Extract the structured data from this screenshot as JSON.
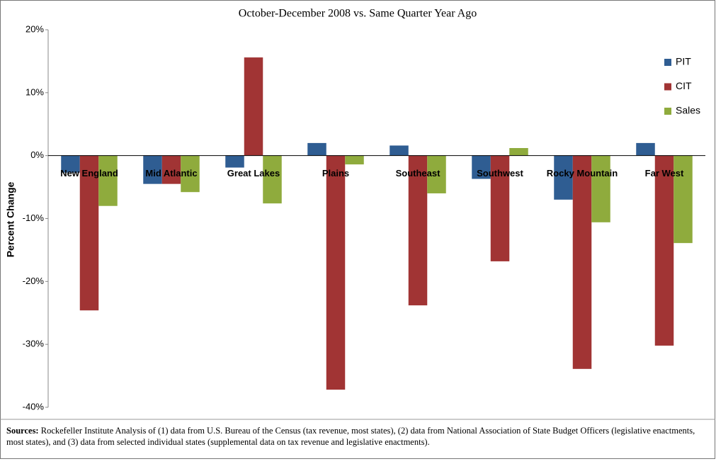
{
  "chart_data": {
    "type": "bar",
    "title": "October-December 2008 vs. Same Quarter Year Ago",
    "y_label": "Percent Change",
    "categories": [
      "New England",
      "Mid Atlantic",
      "Great Lakes",
      "Plains",
      "Southeast",
      "Southwest",
      "Rocky Mountain",
      "Far West"
    ],
    "series": [
      {
        "name": "PIT",
        "color": "#2f5d92",
        "values": [
          -2.7,
          -4.5,
          -1.9,
          2.0,
          1.6,
          -3.7,
          -7.0,
          2.0
        ]
      },
      {
        "name": "CIT",
        "color": "#a13434",
        "values": [
          -24.6,
          -4.5,
          15.6,
          -37.2,
          -23.8,
          -16.8,
          -33.9,
          -30.2
        ]
      },
      {
        "name": "Sales",
        "color": "#8fab3d",
        "values": [
          -8.0,
          -5.8,
          -7.6,
          -1.4,
          -6.0,
          1.2,
          -10.6,
          -13.9
        ]
      }
    ],
    "ylim": [
      -40,
      20
    ],
    "yticks": [
      {
        "value": -40,
        "label": "-40%"
      },
      {
        "value": -30,
        "label": "-30%"
      },
      {
        "value": -20,
        "label": "-20%"
      },
      {
        "value": -10,
        "label": "-10%"
      },
      {
        "value": 0,
        "label": "0%"
      },
      {
        "value": 10,
        "label": "10%"
      },
      {
        "value": 20,
        "label": "20%"
      }
    ],
    "grid": false,
    "legend": "upper right",
    "source_label": "Sources:",
    "source_text": "Rockefeller Institute Analysis of (1) data from U.S. Bureau of the Census (tax revenue, most states), (2) data from National Association of State Budget Officers (legislative enactments, most states), and (3) data from selected individual states (supplemental data on tax revenue and legislative enactments)."
  }
}
